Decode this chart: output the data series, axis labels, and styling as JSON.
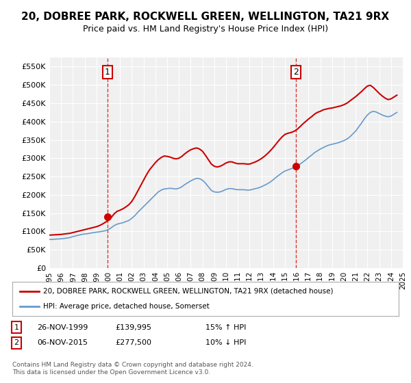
{
  "title": "20, DOBREE PARK, ROCKWELL GREEN, WELLINGTON, TA21 9RX",
  "subtitle": "Price paid vs. HM Land Registry's House Price Index (HPI)",
  "title_fontsize": 11,
  "subtitle_fontsize": 9,
  "background_color": "#ffffff",
  "plot_bg_color": "#f0f0f0",
  "grid_color": "#ffffff",
  "sale1_date": "1999-11-26",
  "sale1_value": 139995,
  "sale1_label": "1",
  "sale2_date": "2015-11-06",
  "sale2_value": 277500,
  "sale2_label": "2",
  "legend_entry1": "20, DOBREE PARK, ROCKWELL GREEN, WELLINGTON, TA21 9RX (detached house)",
  "legend_entry2": "HPI: Average price, detached house, Somerset",
  "table_row1": [
    "1",
    "26-NOV-1999",
    "£139,995",
    "15% ↑ HPI"
  ],
  "table_row2": [
    "2",
    "06-NOV-2015",
    "£277,500",
    "10% ↓ HPI"
  ],
  "footer": "Contains HM Land Registry data © Crown copyright and database right 2024.\nThis data is licensed under the Open Government Licence v3.0.",
  "ylim": [
    0,
    575000
  ],
  "yticks": [
    0,
    50000,
    100000,
    150000,
    200000,
    250000,
    300000,
    350000,
    400000,
    450000,
    500000,
    550000
  ],
  "ylabel_format": "£{0}K",
  "red_color": "#cc0000",
  "blue_color": "#6699cc",
  "sale_marker_color_1": "#cc0000",
  "sale_marker_color_2": "#cc0000",
  "vline_color": "#cc0000",
  "hpi_years": [
    1995.0,
    1995.25,
    1995.5,
    1995.75,
    1996.0,
    1996.25,
    1996.5,
    1996.75,
    1997.0,
    1997.25,
    1997.5,
    1997.75,
    1998.0,
    1998.25,
    1998.5,
    1998.75,
    1999.0,
    1999.25,
    1999.5,
    1999.75,
    2000.0,
    2000.25,
    2000.5,
    2000.75,
    2001.0,
    2001.25,
    2001.5,
    2001.75,
    2002.0,
    2002.25,
    2002.5,
    2002.75,
    2003.0,
    2003.25,
    2003.5,
    2003.75,
    2004.0,
    2004.25,
    2004.5,
    2004.75,
    2005.0,
    2005.25,
    2005.5,
    2005.75,
    2006.0,
    2006.25,
    2006.5,
    2006.75,
    2007.0,
    2007.25,
    2007.5,
    2007.75,
    2008.0,
    2008.25,
    2008.5,
    2008.75,
    2009.0,
    2009.25,
    2009.5,
    2009.75,
    2010.0,
    2010.25,
    2010.5,
    2010.75,
    2011.0,
    2011.25,
    2011.5,
    2011.75,
    2012.0,
    2012.25,
    2012.5,
    2012.75,
    2013.0,
    2013.25,
    2013.5,
    2013.75,
    2014.0,
    2014.25,
    2014.5,
    2014.75,
    2015.0,
    2015.25,
    2015.5,
    2015.75,
    2016.0,
    2016.25,
    2016.5,
    2016.75,
    2017.0,
    2017.25,
    2017.5,
    2017.75,
    2018.0,
    2018.25,
    2018.5,
    2018.75,
    2019.0,
    2019.25,
    2019.5,
    2019.75,
    2020.0,
    2020.25,
    2020.5,
    2020.75,
    2021.0,
    2021.25,
    2021.5,
    2021.75,
    2022.0,
    2022.25,
    2022.5,
    2022.75,
    2023.0,
    2023.25,
    2023.5,
    2023.75,
    2024.0,
    2024.25,
    2024.5
  ],
  "hpi_values": [
    78000,
    78500,
    79000,
    79500,
    80000,
    81000,
    82000,
    83500,
    86000,
    88000,
    90000,
    92000,
    93000,
    94000,
    95500,
    97000,
    98000,
    99000,
    100500,
    102000,
    105000,
    110000,
    116000,
    120000,
    122000,
    124000,
    127000,
    130000,
    136000,
    143000,
    152000,
    160000,
    168000,
    176000,
    184000,
    192000,
    200000,
    208000,
    213000,
    216000,
    217000,
    218000,
    217000,
    216000,
    218000,
    222000,
    228000,
    233000,
    238000,
    242000,
    245000,
    244000,
    240000,
    232000,
    222000,
    212000,
    208000,
    207000,
    208000,
    211000,
    215000,
    217000,
    217000,
    215000,
    214000,
    214000,
    214000,
    213000,
    213000,
    215000,
    217000,
    219000,
    222000,
    226000,
    230000,
    235000,
    241000,
    248000,
    254000,
    260000,
    265000,
    268000,
    271000,
    274000,
    278000,
    283000,
    289000,
    295000,
    302000,
    308000,
    315000,
    320000,
    325000,
    329000,
    333000,
    336000,
    338000,
    340000,
    342000,
    345000,
    348000,
    352000,
    358000,
    366000,
    374000,
    385000,
    396000,
    408000,
    418000,
    425000,
    428000,
    426000,
    422000,
    418000,
    415000,
    413000,
    415000,
    420000,
    425000
  ],
  "property_years": [
    1995.0,
    1995.25,
    1995.5,
    1995.75,
    1996.0,
    1996.25,
    1996.5,
    1996.75,
    1997.0,
    1997.25,
    1997.5,
    1997.75,
    1998.0,
    1998.25,
    1998.5,
    1998.75,
    1999.0,
    1999.25,
    1999.5,
    1999.75,
    2000.0,
    2000.25,
    2000.5,
    2000.75,
    2001.0,
    2001.25,
    2001.5,
    2001.75,
    2002.0,
    2002.25,
    2002.5,
    2002.75,
    2003.0,
    2003.25,
    2003.5,
    2003.75,
    2004.0,
    2004.25,
    2004.5,
    2004.75,
    2005.0,
    2005.25,
    2005.5,
    2005.75,
    2006.0,
    2006.25,
    2006.5,
    2006.75,
    2007.0,
    2007.25,
    2007.5,
    2007.75,
    2008.0,
    2008.25,
    2008.5,
    2008.75,
    2009.0,
    2009.25,
    2009.5,
    2009.75,
    2010.0,
    2010.25,
    2010.5,
    2010.75,
    2011.0,
    2011.25,
    2011.5,
    2011.75,
    2012.0,
    2012.25,
    2012.5,
    2012.75,
    2013.0,
    2013.25,
    2013.5,
    2013.75,
    2014.0,
    2014.25,
    2014.5,
    2014.75,
    2015.0,
    2015.25,
    2015.5,
    2015.75,
    2016.0,
    2016.25,
    2016.5,
    2016.75,
    2017.0,
    2017.25,
    2017.5,
    2017.75,
    2018.0,
    2018.25,
    2018.5,
    2018.75,
    2019.0,
    2019.25,
    2019.5,
    2019.75,
    2020.0,
    2020.25,
    2020.5,
    2020.75,
    2021.0,
    2021.25,
    2021.5,
    2021.75,
    2022.0,
    2022.25,
    2022.5,
    2022.75,
    2023.0,
    2023.25,
    2023.5,
    2023.75,
    2024.0,
    2024.25,
    2024.5
  ],
  "property_values": [
    90000,
    90500,
    91000,
    91500,
    92000,
    93000,
    94000,
    95000,
    97000,
    99000,
    101000,
    103000,
    105000,
    107000,
    109000,
    111000,
    113000,
    116000,
    120000,
    125000,
    130000,
    138000,
    148000,
    155000,
    158000,
    162000,
    167000,
    173000,
    182000,
    195000,
    210000,
    225000,
    240000,
    255000,
    268000,
    278000,
    288000,
    296000,
    302000,
    306000,
    305000,
    303000,
    300000,
    298000,
    300000,
    305000,
    312000,
    318000,
    323000,
    326000,
    328000,
    325000,
    319000,
    308000,
    296000,
    284000,
    278000,
    276000,
    278000,
    282000,
    287000,
    290000,
    290000,
    287000,
    285000,
    285000,
    285000,
    284000,
    284000,
    287000,
    290000,
    294000,
    299000,
    305000,
    312000,
    320000,
    329000,
    339000,
    349000,
    358000,
    365000,
    368000,
    370000,
    373000,
    378000,
    385000,
    393000,
    400000,
    407000,
    413000,
    420000,
    425000,
    428000,
    432000,
    434000,
    436000,
    437000,
    439000,
    441000,
    443000,
    446000,
    450000,
    456000,
    462000,
    468000,
    475000,
    482000,
    490000,
    497000,
    499000,
    493000,
    485000,
    477000,
    470000,
    464000,
    460000,
    462000,
    467000,
    472000
  ],
  "xtick_years": [
    1995,
    1996,
    1997,
    1998,
    1999,
    2000,
    2001,
    2002,
    2003,
    2004,
    2005,
    2006,
    2007,
    2008,
    2009,
    2010,
    2011,
    2012,
    2013,
    2014,
    2015,
    2016,
    2017,
    2018,
    2019,
    2020,
    2021,
    2022,
    2023,
    2024,
    2025
  ]
}
